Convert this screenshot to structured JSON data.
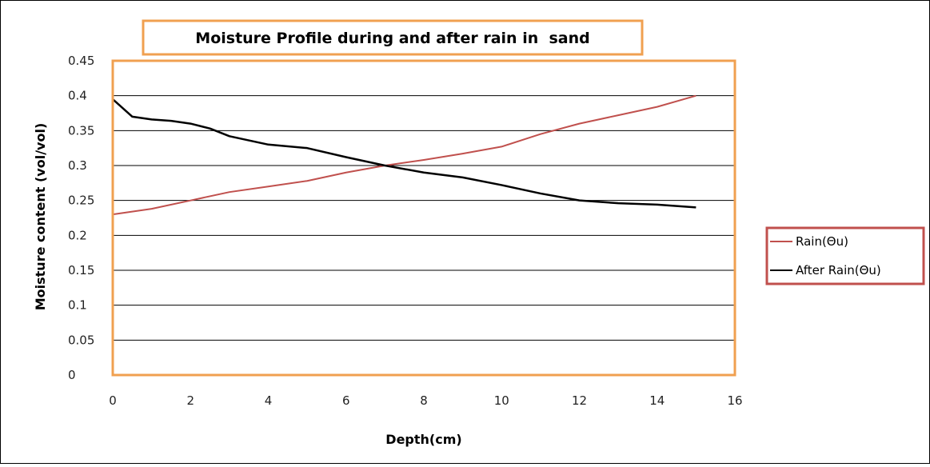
{
  "chart_data": {
    "type": "line",
    "title": "Moisture Profile during and after rain in  sand",
    "xlabel": "Depth(cm)",
    "ylabel": "Moisture content (vol/vol)",
    "xlim": [
      0,
      16
    ],
    "ylim": [
      0,
      0.45
    ],
    "xticks": [
      0,
      2,
      4,
      6,
      8,
      10,
      12,
      14,
      16
    ],
    "yticks": [
      0,
      0.05,
      0.1,
      0.15,
      0.2,
      0.25,
      0.3,
      0.35,
      0.4,
      0.45
    ],
    "xtick_labels": [
      "0",
      "2",
      "4",
      "6",
      "8",
      "10",
      "12",
      "14",
      "16"
    ],
    "ytick_labels": [
      "0",
      "0.05",
      "0.1",
      "0.15",
      "0.2",
      "0.25",
      "0.3",
      "0.35",
      "0.4",
      "0.45"
    ],
    "grid": "horizontal",
    "legend_position": "right",
    "series": [
      {
        "name": "Rain(Θu)",
        "color": "#c0504d",
        "points": [
          [
            0,
            0.23
          ],
          [
            1,
            0.238
          ],
          [
            2,
            0.25
          ],
          [
            3,
            0.262
          ],
          [
            4,
            0.27
          ],
          [
            5,
            0.278
          ],
          [
            6,
            0.29
          ],
          [
            7,
            0.3
          ],
          [
            8,
            0.308
          ],
          [
            9,
            0.317
          ],
          [
            10,
            0.327
          ],
          [
            11,
            0.345
          ],
          [
            12,
            0.36
          ],
          [
            13,
            0.372
          ],
          [
            14,
            0.384
          ],
          [
            15,
            0.4
          ]
        ]
      },
      {
        "name": "After Rain(Θu)",
        "color": "#000000",
        "points": [
          [
            0,
            0.395
          ],
          [
            0.5,
            0.37
          ],
          [
            1,
            0.366
          ],
          [
            1.5,
            0.364
          ],
          [
            2,
            0.36
          ],
          [
            2.5,
            0.353
          ],
          [
            3,
            0.342
          ],
          [
            4,
            0.33
          ],
          [
            5,
            0.325
          ],
          [
            6,
            0.312
          ],
          [
            7,
            0.3
          ],
          [
            8,
            0.29
          ],
          [
            9,
            0.283
          ],
          [
            10,
            0.272
          ],
          [
            11,
            0.26
          ],
          [
            12,
            0.25
          ],
          [
            13,
            0.246
          ],
          [
            14,
            0.244
          ],
          [
            15,
            0.24
          ]
        ]
      }
    ]
  },
  "colors": {
    "plot_border": "#f0a050",
    "title_border": "#f0a050",
    "legend_border": "#c0504d",
    "gridline": "#000000"
  }
}
